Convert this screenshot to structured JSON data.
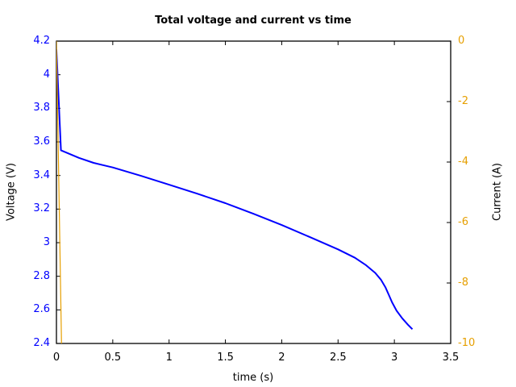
{
  "chart_data": {
    "type": "line",
    "title": "Total voltage and current vs time",
    "xlabel": "time (s)",
    "ylabel": "Voltage (V)",
    "y2label": "Current (A)",
    "xlim": [
      0,
      3.5
    ],
    "ylim": [
      2.4,
      4.2
    ],
    "y2lim": [
      -10,
      0
    ],
    "x_ticks": [
      "0",
      "0.5",
      "1",
      "1.5",
      "2",
      "2.5",
      "3",
      "3.5"
    ],
    "y_ticks": [
      "4.2",
      "4",
      "3.8",
      "3.6",
      "3.4",
      "3.2",
      "3",
      "2.8",
      "2.6",
      "2.4"
    ],
    "y2_ticks": [
      "0",
      "-2",
      "-4",
      "-6",
      "-8",
      "-10"
    ],
    "grid": false,
    "legend": null,
    "series": [
      {
        "name": "Voltage",
        "axis": "left",
        "color": "#0000ff",
        "x": [
          0,
          0.04,
          0.2,
          0.33,
          0.5,
          0.75,
          1.0,
          1.25,
          1.5,
          1.75,
          2.0,
          2.25,
          2.5,
          2.65,
          2.75,
          2.83,
          2.88,
          2.92,
          2.95,
          2.98,
          3.02,
          3.07,
          3.12,
          3.16
        ],
        "values": [
          4.15,
          3.55,
          3.505,
          3.475,
          3.448,
          3.398,
          3.345,
          3.292,
          3.235,
          3.172,
          3.105,
          3.033,
          2.96,
          2.91,
          2.865,
          2.82,
          2.78,
          2.735,
          2.69,
          2.645,
          2.595,
          2.55,
          2.512,
          2.485
        ]
      },
      {
        "name": "Current",
        "axis": "right",
        "color": "#e69f00",
        "x": [
          0,
          0.045
        ],
        "values": [
          0,
          -10
        ]
      }
    ]
  },
  "colors": {
    "left_axis": "#0000ff",
    "right_axis": "#e69f00"
  }
}
